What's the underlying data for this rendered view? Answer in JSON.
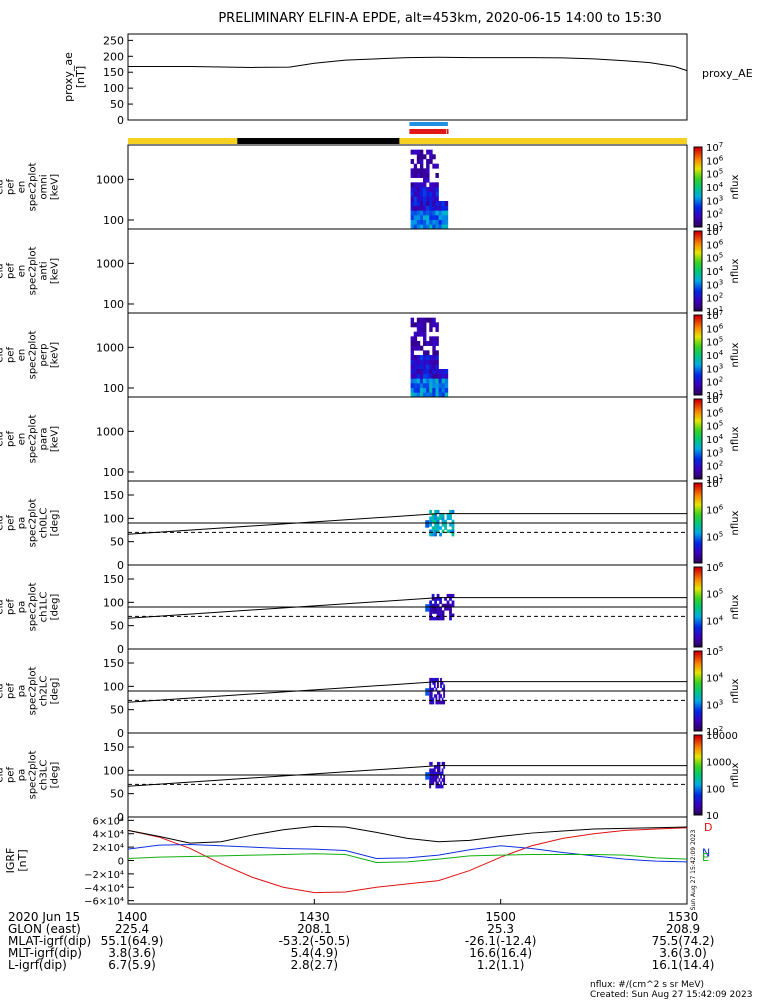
{
  "title": "PRELIMINARY ELFIN-A EPDE, alt=453km, 2020-06-15 14:00 to 15:30",
  "footer": {
    "units": "nflux: #/(cm^2 s sr MeV)",
    "created": "Created: Sun Aug 27 15:42:09 2023",
    "stamp": "Sun Aug 27 15:42:09 2023"
  },
  "orbit_table": {
    "rows": [
      {
        "label": "2020 Jun 15",
        "values": [
          "1400",
          "1430",
          "1500",
          "1530"
        ]
      },
      {
        "label": "GLON (east)",
        "values": [
          "225.4",
          "208.1",
          "25.3",
          "208.9"
        ]
      },
      {
        "label": "MLAT-igrf(dip)",
        "values": [
          "55.1(64.9)",
          "-53.2(-50.5)",
          "-26.1(-12.4)",
          "75.5(74.2)"
        ]
      },
      {
        "label": "MLT-igrf(dip)",
        "values": [
          "3.8(3.6)",
          "5.4(4.9)",
          "16.6(16.4)",
          "3.6(3.0)"
        ]
      },
      {
        "label": "L-igrf(dip)",
        "values": [
          "6.7(5.9)",
          "2.8(2.7)",
          "1.2(1.1)",
          "16.1(14.4)"
        ]
      }
    ]
  },
  "chart_data": [
    {
      "type": "line",
      "panel": "proxy_ae",
      "ylabel": [
        "proxy_ae",
        "[nT]"
      ],
      "yticks": [
        0,
        50,
        100,
        150,
        200,
        250
      ],
      "ylim": [
        0,
        270
      ],
      "legend": "proxy_AE",
      "x_minutes": [
        0,
        10,
        20,
        26,
        30,
        35,
        40,
        45,
        50,
        55,
        60,
        65,
        70,
        75,
        80,
        84,
        88,
        90
      ],
      "values": [
        168,
        168,
        165,
        166,
        178,
        188,
        192,
        196,
        197,
        196,
        196,
        196,
        195,
        192,
        186,
        180,
        168,
        155
      ],
      "color": "#000000"
    },
    {
      "type": "bar",
      "panel": "status_bars",
      "segments": [
        {
          "row": 1,
          "start": 45.3,
          "end": 51.5,
          "color": "#2090e0"
        },
        {
          "row": 2,
          "start": 45.3,
          "end": 51.2,
          "color": "#e01818"
        },
        {
          "row": 2,
          "start": 51.3,
          "end": 51.6,
          "color": "#e01818"
        },
        {
          "row": 3,
          "start": 0,
          "end": 17.6,
          "color": "#f5d020"
        },
        {
          "row": 3,
          "start": 17.6,
          "end": 43.7,
          "color": "#000000"
        },
        {
          "row": 3,
          "start": 43.7,
          "end": 90,
          "color": "#f5d020"
        }
      ]
    },
    {
      "type": "heatmap",
      "panel": "spec_omni",
      "ylabel": [
        "ela",
        "pef",
        "en",
        "spec2plot",
        "omni",
        "[keV]"
      ],
      "ylog": true,
      "ylim": [
        60,
        7000
      ],
      "yticks": [
        100,
        1000
      ],
      "zlabel": "nflux",
      "zlog": true,
      "zlim": [
        10,
        10000000
      ],
      "ztick_exponents": [
        1,
        2,
        3,
        4,
        5,
        6,
        7
      ],
      "active_minutes": [
        45.5,
        51.5
      ],
      "has_data": true
    },
    {
      "type": "heatmap",
      "panel": "spec_anti",
      "ylabel": [
        "ela",
        "pef",
        "en",
        "spec2plot",
        "anti",
        "[keV]"
      ],
      "ylog": true,
      "ylim": [
        60,
        7000
      ],
      "yticks": [
        100,
        1000
      ],
      "zlabel": "nflux",
      "zlog": true,
      "zlim": [
        10,
        10000000
      ],
      "ztick_exponents": [
        1,
        2,
        3,
        4,
        5,
        6,
        7
      ],
      "has_data": false
    },
    {
      "type": "heatmap",
      "panel": "spec_perp",
      "ylabel": [
        "ela",
        "pef",
        "en",
        "spec2plot",
        "perp",
        "[keV]"
      ],
      "ylog": true,
      "ylim": [
        60,
        7000
      ],
      "yticks": [
        100,
        1000
      ],
      "zlabel": "nflux",
      "zlog": true,
      "zlim": [
        10,
        10000000
      ],
      "ztick_exponents": [
        1,
        2,
        3,
        4,
        5,
        6,
        7
      ],
      "active_minutes": [
        45.5,
        51.5
      ],
      "has_data": true
    },
    {
      "type": "heatmap",
      "panel": "spec_para",
      "ylabel": [
        "ela",
        "pef",
        "en",
        "spec2plot",
        "para",
        "[keV]"
      ],
      "ylog": true,
      "ylim": [
        60,
        7000
      ],
      "yticks": [
        100,
        1000
      ],
      "zlabel": "nflux",
      "zlog": true,
      "zlim": [
        10,
        10000000
      ],
      "ztick_exponents": [
        1,
        2,
        3,
        4,
        5,
        6,
        7
      ],
      "has_data": false
    },
    {
      "type": "heatmap",
      "panel": "pa_ch0",
      "ylabel": [
        "ela",
        "pef",
        "pa",
        "spec2plot",
        "ch0LC",
        "[deg]"
      ],
      "ylim": [
        0,
        180
      ],
      "yticks": [
        0,
        50,
        100,
        150
      ],
      "zlabel": "nflux",
      "zlog": true,
      "zlim": [
        10000,
        10000000
      ],
      "ztick_exponents": [
        5,
        6,
        7
      ],
      "lc_start": 66,
      "lc_end": 110,
      "lc_ref": 90,
      "antilc": 70,
      "active_minutes": [
        48.5,
        52.5
      ]
    },
    {
      "type": "heatmap",
      "panel": "pa_ch1",
      "ylabel": [
        "ela",
        "pef",
        "pa",
        "spec2plot",
        "ch1LC",
        "[deg]"
      ],
      "ylim": [
        0,
        180
      ],
      "yticks": [
        0,
        50,
        100,
        150
      ],
      "zlabel": "nflux",
      "zlog": true,
      "zlim": [
        1000,
        1000000
      ],
      "ztick_exponents": [
        4,
        5,
        6
      ],
      "lc_start": 66,
      "lc_end": 110,
      "lc_ref": 90,
      "antilc": 70,
      "active_minutes": [
        48.5,
        52.5
      ]
    },
    {
      "type": "heatmap",
      "panel": "pa_ch2",
      "ylabel": [
        "ela",
        "pef",
        "pa",
        "spec2plot",
        "ch2LC",
        "[deg]"
      ],
      "ylim": [
        0,
        180
      ],
      "yticks": [
        0,
        50,
        100,
        150
      ],
      "zlabel": "nflux",
      "zlog": true,
      "zlim": [
        100,
        100000
      ],
      "ztick_exponents": [
        2,
        3,
        4,
        5
      ],
      "lc_start": 66,
      "lc_end": 110,
      "lc_ref": 90,
      "antilc": 70,
      "active_minutes": [
        48.5,
        51.0
      ]
    },
    {
      "type": "heatmap",
      "panel": "pa_ch3",
      "ylabel": [
        "ela",
        "pef",
        "pa",
        "spec2plot",
        "ch3LC",
        "[deg]"
      ],
      "ylim": [
        0,
        180
      ],
      "yticks": [
        0,
        50,
        100,
        150
      ],
      "zlabel": "nflux",
      "zlog": true,
      "zlim": [
        10,
        10000
      ],
      "ztick_labels": [
        "10",
        "100",
        "1000",
        "10000"
      ],
      "lc_start": 66,
      "lc_end": 110,
      "lc_ref": 90,
      "antilc": 70,
      "active_minutes": [
        48.5,
        51.0
      ]
    },
    {
      "type": "line",
      "panel": "igrf",
      "ylabel": [
        "IGRF",
        "[nT]"
      ],
      "ylim": [
        -65000,
        65000
      ],
      "yticks": [
        {
          "v": 60000,
          "label": "6×10⁴"
        },
        {
          "v": 40000,
          "label": "4×10⁴"
        },
        {
          "v": 20000,
          "label": "2×10⁴"
        },
        {
          "v": 0,
          "label": "0"
        },
        {
          "v": -20000,
          "label": "−2×10⁴"
        },
        {
          "v": -40000,
          "label": "−4×10⁴"
        },
        {
          "v": -60000,
          "label": "−6×10⁴"
        }
      ],
      "x_minutes": [
        0,
        5,
        10,
        15,
        20,
        25,
        30,
        35,
        40,
        45,
        50,
        55,
        60,
        65,
        70,
        75,
        80,
        85,
        90
      ],
      "series": [
        {
          "name": "D",
          "color": "#e01010",
          "values": [
            45000,
            35000,
            18000,
            -5000,
            -25000,
            -40000,
            -48000,
            -47000,
            -40000,
            -35000,
            -30000,
            -15000,
            5000,
            22000,
            33000,
            40000,
            45000,
            47000,
            49000
          ]
        },
        {
          "name": "N",
          "color": "#1030e0",
          "values": [
            17000,
            23000,
            24000,
            22000,
            20000,
            18000,
            17000,
            15000,
            3000,
            4000,
            8000,
            16000,
            22000,
            18000,
            12000,
            7000,
            2000,
            -1000,
            -2000
          ]
        },
        {
          "name": "E",
          "color": "#10b010",
          "values": [
            3000,
            5000,
            6000,
            7000,
            8000,
            9000,
            10000,
            9000,
            -3000,
            -2000,
            2000,
            7000,
            8000,
            9000,
            9000,
            9000,
            8000,
            4000,
            2000
          ]
        },
        {
          "name": "",
          "color": "#000000",
          "values": [
            45000,
            36000,
            26000,
            28000,
            38000,
            46000,
            51000,
            50000,
            42000,
            33000,
            28000,
            30000,
            36000,
            41000,
            44000,
            47000,
            48000,
            49000,
            50000
          ]
        }
      ]
    }
  ]
}
